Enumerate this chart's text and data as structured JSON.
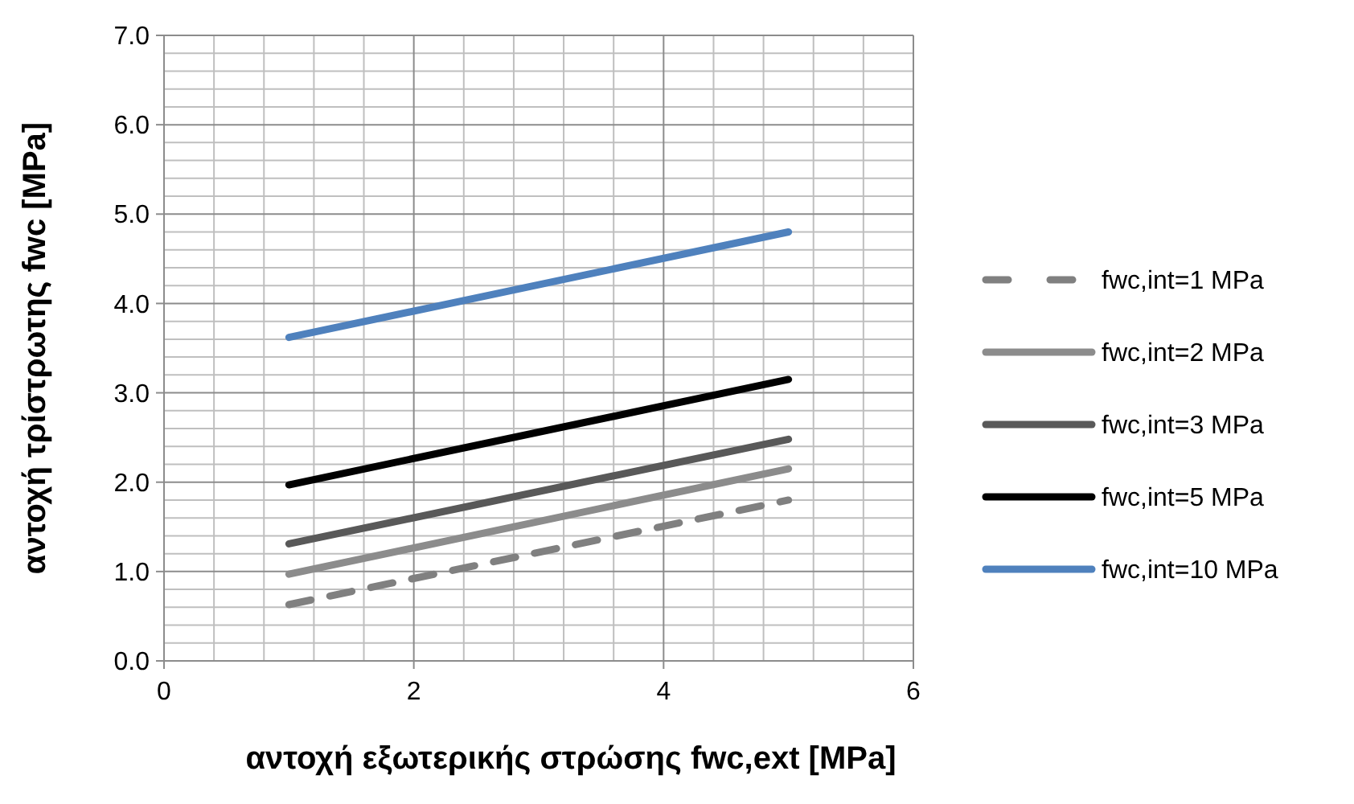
{
  "chart_data": {
    "type": "line",
    "xlabel": "αντοχή εξωτερικής στρώσης fwc,ext [MPa]",
    "ylabel": "αντοχή τρίστρωτης fwc [MPa]",
    "xlim": [
      0,
      6
    ],
    "xticks": [
      0,
      2,
      4,
      6
    ],
    "ylim": [
      0,
      7
    ],
    "yticks": [
      {
        "value": 0,
        "label": "0.0"
      },
      {
        "value": 1,
        "label": "1.0"
      },
      {
        "value": 2,
        "label": "2.0"
      },
      {
        "value": 3,
        "label": "3.0"
      },
      {
        "value": 4,
        "label": "4.0"
      },
      {
        "value": 5,
        "label": "5.0"
      },
      {
        "value": 6,
        "label": "6.0"
      },
      {
        "value": 7,
        "label": "7.0"
      }
    ],
    "grid": true,
    "legend": "right",
    "x": [
      1,
      5
    ],
    "series": [
      {
        "name": "fwc,int=1 MPa",
        "color": "#808080",
        "values": [
          0.63,
          1.8
        ],
        "line_style": "dashed"
      },
      {
        "name": "fwc,int=2 MPa",
        "color": "#8c8c8c",
        "values": [
          0.97,
          2.15
        ]
      },
      {
        "name": "fwc,int=3 MPa",
        "color": "#595959",
        "values": [
          1.31,
          2.48
        ]
      },
      {
        "name": "fwc,int=5 MPa",
        "color": "#000000",
        "values": [
          1.97,
          3.15
        ]
      },
      {
        "name": "fwc,int=10 MPa",
        "color": "#4f81bd",
        "values": [
          3.62,
          4.8
        ]
      }
    ]
  }
}
